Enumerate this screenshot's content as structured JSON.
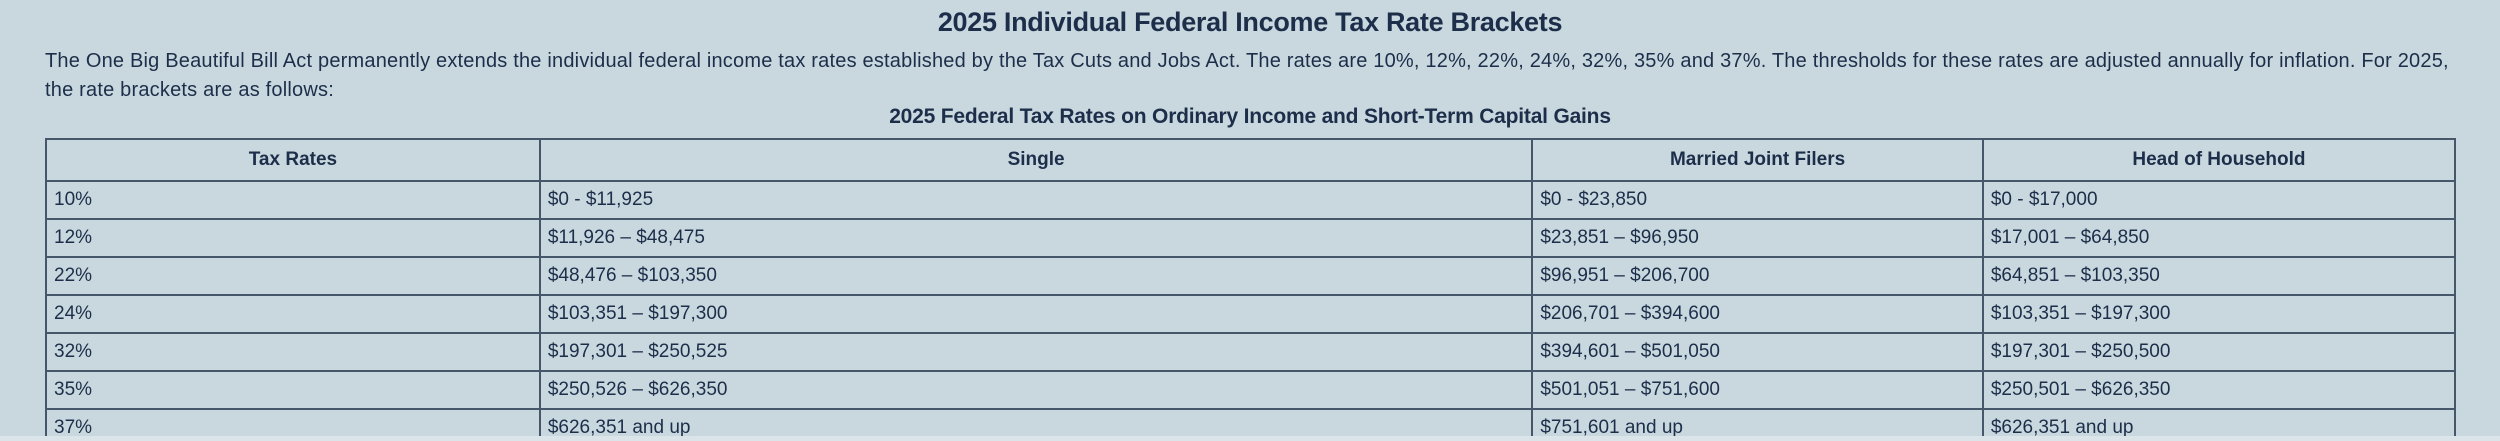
{
  "page": {
    "title": "2025 Individual Federal Income Tax Rate Brackets",
    "intro": "The One Big Beautiful Bill Act permanently extends the individual federal income tax rates established by the Tax Cuts and Jobs Act. The rates are 10%, 12%, 22%, 24%, 32%, 35% and 37%. The thresholds for these rates are adjusted annually for inflation. For 2025, the rate brackets are as follows:",
    "table_title": "2025 Federal Tax Rates on Ordinary Income and Short-Term Capital Gains"
  },
  "table": {
    "columns": [
      "Tax Rates",
      "Single",
      "Married Joint Filers",
      "Head of Household"
    ],
    "rows": [
      [
        "10%",
        "$0 - $11,925",
        "$0 - $23,850",
        "$0 - $17,000"
      ],
      [
        "12%",
        "$11,926 – $48,475",
        "$23,851 – $96,950",
        "$17,001 – $64,850"
      ],
      [
        "22%",
        "$48,476 – $103,350",
        "$96,951 – $206,700",
        "$64,851 – $103,350"
      ],
      [
        "24%",
        "$103,351 – $197,300",
        "$206,701 – $394,600",
        "$103,351 – $197,300"
      ],
      [
        "32%",
        "$197,301 – $250,525",
        "$394,601 – $501,050",
        "$197,301 – $250,500"
      ],
      [
        "35%",
        "$250,526 – $626,350",
        "$501,051 – $751,600",
        "$250,501 – $626,350"
      ],
      [
        "37%",
        "$626,351 and up",
        "$751,601 and up",
        "$626,351 and up"
      ]
    ]
  },
  "colors": {
    "background": "#c9d8de",
    "text": "#1d2e4a",
    "border": "#47576b"
  }
}
